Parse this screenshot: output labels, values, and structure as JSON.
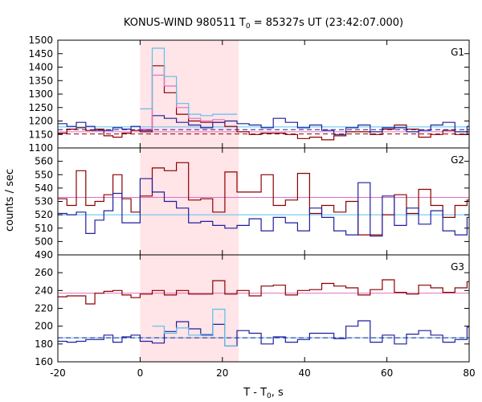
{
  "chart_data": {
    "type": "line",
    "title": {
      "prefix": "KONUS-WIND 980511 T",
      "sub": "0",
      "suffix": " = 85327s UT (23:42:07.000)"
    },
    "xlabel": {
      "main": "T - T",
      "sub": "0",
      "suffix": ", s"
    },
    "ylabel": "counts / sec",
    "xlim": [
      -20,
      80
    ],
    "x_ticks": [
      -20,
      0,
      20,
      40,
      60,
      80
    ],
    "highlight_interval": [
      0,
      24
    ],
    "bin_edges": [
      -20,
      -17.8,
      -15.5,
      -13.2,
      -11.0,
      -8.8,
      -6.6,
      -4.4,
      -2.2,
      0,
      2.944,
      5.888,
      8.832,
      11.776,
      14.72,
      17.664,
      20.608,
      23.552,
      26.496,
      29.44,
      32.384,
      35.328,
      38.272,
      41.216,
      44.16,
      47.104,
      50.048,
      52.992,
      55.936,
      58.88,
      61.824,
      64.768,
      67.712,
      70.656,
      73.6,
      76.544,
      79.488,
      82.432
    ],
    "colors": {
      "dark_red": "#8b0000",
      "dark_blue": "#1f1f9e",
      "pink": "#e070c0",
      "cyan": "#5bc0ea",
      "highlight": "#ffe4e8"
    },
    "panels": [
      {
        "name": "G1",
        "ylim": [
          1100,
          1500
        ],
        "y_ticks": [
          1100,
          1150,
          1200,
          1250,
          1300,
          1350,
          1400,
          1450,
          1500
        ],
        "series": [
          {
            "color": "dark_red",
            "values": [
              1155,
              1170,
              1175,
              1165,
              1170,
              1145,
              1140,
              1155,
              1165,
              1160,
              1405,
              1305,
              1225,
              1200,
              1195,
              1195,
              1180,
              1160,
              1150,
              1155,
              1155,
              1150,
              1135,
              1140,
              1130,
              1145,
              1160,
              1160,
              1150,
              1170,
              1185,
              1170,
              1140,
              1150,
              1165,
              1150,
              1160
            ]
          },
          {
            "color": "dark_blue",
            "values": [
              1190,
              1180,
              1195,
              1180,
              1165,
              1165,
              1175,
              1170,
              1180,
              1165,
              1220,
              1210,
              1195,
              1185,
              1175,
              1195,
              1200,
              1190,
              1185,
              1175,
              1210,
              1195,
              1175,
              1185,
              1165,
              1150,
              1175,
              1185,
              1160,
              1175,
              1175,
              1160,
              1165,
              1185,
              1195,
              1160,
              1180
            ]
          },
          {
            "color": "pink",
            "values": [
              null,
              null,
              null,
              null,
              null,
              null,
              null,
              null,
              null,
              1170,
              1370,
              1330,
              1250,
              1210,
              1200,
              1205,
              null
            ]
          },
          {
            "color": "cyan",
            "values": [
              null,
              null,
              null,
              null,
              null,
              null,
              null,
              null,
              null,
              1245,
              1470,
              1365,
              1265,
              1225,
              1220,
              1225,
              1225
            ]
          }
        ],
        "baselines": [
          {
            "color": "dark_red",
            "value": 1152,
            "style": "dashed"
          },
          {
            "color": "dark_blue",
            "value": 1168,
            "style": "dashed"
          },
          {
            "color": "pink",
            "value": 1160,
            "style": "solid"
          },
          {
            "color": "cyan",
            "value": 1178,
            "style": "solid"
          }
        ]
      },
      {
        "name": "G2",
        "ylim": [
          490,
          570
        ],
        "y_ticks": [
          490,
          500,
          510,
          520,
          530,
          540,
          550,
          560
        ],
        "series": [
          {
            "color": "dark_red",
            "values": [
              532,
              527,
              553,
              527,
              530,
              535,
              550,
              532,
              522,
              534,
              555,
              553,
              559,
              531,
              532,
              522,
              552,
              537,
              537,
              550,
              527,
              531,
              551,
              521,
              527,
              522,
              530,
              505,
              505,
              520,
              535,
              521,
              539,
              527,
              518,
              527,
              531
            ]
          },
          {
            "color": "dark_blue",
            "values": [
              521,
              520,
              522,
              506,
              516,
              523,
              536,
              514,
              514,
              547,
              537,
              530,
              525,
              514,
              515,
              512,
              510,
              512,
              517,
              508,
              518,
              514,
              508,
              525,
              518,
              508,
              505,
              544,
              504,
              534,
              512,
              525,
              513,
              523,
              508,
              505,
              518
            ]
          },
          {
            "color": "pink",
            "values": []
          },
          {
            "color": "cyan",
            "values": []
          }
        ],
        "baselines": [
          {
            "color": "pink",
            "value": 533,
            "style": "solid"
          },
          {
            "color": "cyan",
            "value": 520,
            "style": "solid"
          }
        ]
      },
      {
        "name": "G3",
        "ylim": [
          160,
          280
        ],
        "y_ticks": [
          160,
          180,
          200,
          220,
          240,
          260
        ],
        "series": [
          {
            "color": "dark_red",
            "values": [
              233,
              234,
              234,
              225,
              237,
              239,
              240,
              235,
              232,
              236,
              240,
              235,
              240,
              236,
              236,
              251,
              236,
              240,
              234,
              245,
              246,
              235,
              240,
              241,
              248,
              245,
              243,
              235,
              241,
              252,
              238,
              236,
              246,
              243,
              238,
              243,
              250
            ]
          },
          {
            "color": "dark_blue",
            "values": [
              183,
              182,
              183,
              185,
              185,
              190,
              182,
              188,
              190,
              183,
              181,
              194,
              205,
              197,
              190,
              202,
              178,
              195,
              192,
              180,
              188,
              182,
              185,
              192,
              192,
              186,
              200,
              206,
              182,
              190,
              180,
              191,
              195,
              190,
              182,
              185,
              199
            ]
          },
          {
            "color": "pink",
            "values": []
          },
          {
            "color": "cyan",
            "values": [
              null,
              null,
              null,
              null,
              null,
              null,
              null,
              null,
              null,
              null,
              200,
              192,
              198,
              190,
              191,
              219,
              178
            ]
          }
        ],
        "baselines": [
          {
            "color": "pink",
            "value": 237,
            "style": "solid"
          },
          {
            "color": "cyan",
            "value": 187,
            "style": "solid"
          },
          {
            "color": "dark_blue",
            "value": 187,
            "style": "dashed"
          }
        ]
      }
    ]
  }
}
